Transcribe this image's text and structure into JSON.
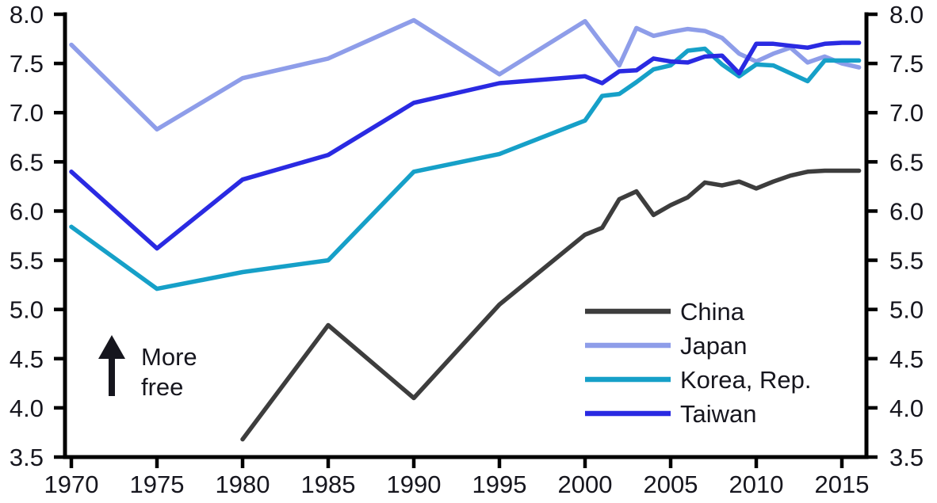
{
  "chart_data": {
    "type": "line",
    "title": "",
    "background_color": "#ffffff",
    "axis_color": "#000000",
    "text_color": "#16161e",
    "grid": false,
    "y_axis": {
      "min": 3.5,
      "max": 8.0,
      "ticks": [
        8.0,
        7.5,
        7.0,
        6.5,
        6.0,
        5.5,
        5.0,
        4.5,
        4.0,
        3.5
      ],
      "tick_labels": [
        "8.0",
        "7.5",
        "7.0",
        "6.5",
        "6.0",
        "5.5",
        "5.0",
        "4.5",
        "4.0",
        "3.5"
      ],
      "sides": [
        "left",
        "right"
      ]
    },
    "x_axis": {
      "ticks": [
        1970,
        1975,
        1980,
        1985,
        1990,
        1995,
        2000,
        2005,
        2010,
        2015
      ],
      "tick_labels": [
        "1970",
        "1975",
        "1980",
        "1985",
        "1990",
        "1995",
        "2000",
        "2005",
        "2010",
        "2015"
      ],
      "data_start": 1970,
      "data_end": 2016
    },
    "annotation": {
      "icon": "up-arrow",
      "lines": [
        "More",
        "free"
      ]
    },
    "legend": {
      "position": "inside-bottom-right",
      "items": [
        {
          "label": "China",
          "color": "#3d3d3d"
        },
        {
          "label": "Japan",
          "color": "#8e9de9"
        },
        {
          "label": "Korea, Rep.",
          "color": "#16a0c8"
        },
        {
          "label": "Taiwan",
          "color": "#2a2ae2"
        }
      ]
    },
    "series": [
      {
        "name": "China",
        "color": "#3d3d3d",
        "x": [
          1980,
          1985,
          1990,
          1995,
          2000,
          2001,
          2002,
          2003,
          2004,
          2005,
          2006,
          2007,
          2008,
          2009,
          2010,
          2011,
          2012,
          2013,
          2014,
          2015,
          2016
        ],
        "values": [
          3.68,
          4.84,
          4.1,
          5.05,
          5.76,
          5.83,
          6.12,
          6.2,
          5.96,
          6.06,
          6.14,
          6.29,
          6.26,
          6.3,
          6.23,
          6.3,
          6.36,
          6.4,
          6.41,
          6.41,
          6.41
        ]
      },
      {
        "name": "Japan",
        "color": "#8e9de9",
        "x": [
          1970,
          1975,
          1980,
          1985,
          1990,
          1995,
          2000,
          2001,
          2002,
          2003,
          2004,
          2005,
          2006,
          2007,
          2008,
          2009,
          2010,
          2011,
          2012,
          2013,
          2014,
          2015,
          2016
        ],
        "values": [
          7.69,
          6.83,
          7.35,
          7.55,
          7.94,
          7.39,
          7.93,
          7.7,
          7.48,
          7.86,
          7.78,
          7.82,
          7.85,
          7.83,
          7.76,
          7.6,
          7.52,
          7.6,
          7.66,
          7.51,
          7.57,
          7.5,
          7.46
        ]
      },
      {
        "name": "Korea, Rep.",
        "color": "#16a0c8",
        "x": [
          1970,
          1975,
          1980,
          1985,
          1990,
          1995,
          2000,
          2001,
          2002,
          2003,
          2004,
          2005,
          2006,
          2007,
          2008,
          2009,
          2010,
          2011,
          2012,
          2013,
          2014,
          2015,
          2016
        ],
        "values": [
          5.84,
          5.21,
          5.38,
          5.5,
          6.4,
          6.58,
          6.92,
          7.17,
          7.19,
          7.31,
          7.44,
          7.48,
          7.63,
          7.65,
          7.49,
          7.37,
          7.49,
          7.48,
          7.4,
          7.32,
          7.53,
          7.53,
          7.53
        ]
      },
      {
        "name": "Taiwan",
        "color": "#2a2ae2",
        "x": [
          1970,
          1975,
          1980,
          1985,
          1990,
          1995,
          2000,
          2001,
          2002,
          2003,
          2004,
          2005,
          2006,
          2007,
          2008,
          2009,
          2010,
          2011,
          2012,
          2013,
          2014,
          2015,
          2016
        ],
        "values": [
          6.4,
          5.62,
          6.32,
          6.57,
          7.1,
          7.3,
          7.37,
          7.3,
          7.42,
          7.43,
          7.55,
          7.52,
          7.51,
          7.57,
          7.58,
          7.4,
          7.7,
          7.7,
          7.68,
          7.66,
          7.7,
          7.71,
          7.71
        ]
      }
    ]
  }
}
